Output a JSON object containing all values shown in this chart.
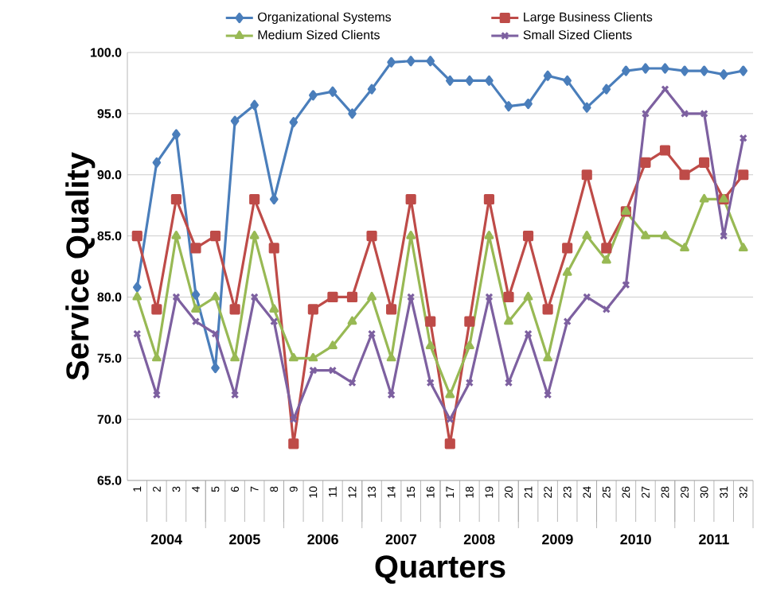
{
  "chart_data": {
    "type": "line",
    "xlabel": "Quarters",
    "ylabel": "Service Quality",
    "categories": [
      "1",
      "2",
      "3",
      "4",
      "5",
      "6",
      "7",
      "8",
      "9",
      "10",
      "11",
      "12",
      "13",
      "14",
      "15",
      "16",
      "17",
      "18",
      "19",
      "20",
      "21",
      "22",
      "23",
      "24",
      "25",
      "26",
      "27",
      "28",
      "29",
      "30",
      "31",
      "32"
    ],
    "series": [
      {
        "name": "Organizational Systems",
        "color": "#4a7ebb",
        "marker": "diamond",
        "values": [
          80.8,
          91,
          93.3,
          80.2,
          74.2,
          94.4,
          95.7,
          88,
          94.3,
          96.5,
          96.8,
          95,
          97,
          99.2,
          99.3,
          99.3,
          97.7,
          97.7,
          97.7,
          95.6,
          95.8,
          98.1,
          97.7,
          95.5,
          97,
          98.5,
          98.7,
          98.7,
          98.5,
          98.5,
          98.2,
          98.5
        ]
      },
      {
        "name": "Large Business Clients",
        "color": "#be4b48",
        "marker": "square",
        "values": [
          85,
          79,
          88,
          84,
          85,
          79,
          88,
          84,
          68,
          79,
          80,
          80,
          85,
          79,
          88,
          78,
          68,
          78,
          88,
          80,
          85,
          79,
          84,
          90,
          84,
          87,
          91,
          92,
          90,
          91,
          88,
          90
        ]
      },
      {
        "name": "Medium Sized Clients",
        "color": "#98b954",
        "marker": "triangle",
        "values": [
          80,
          75,
          85,
          79,
          80,
          75,
          85,
          79,
          75,
          75,
          76,
          78,
          80,
          75,
          85,
          76,
          72,
          76,
          85,
          78,
          80,
          75,
          82,
          85,
          83,
          87,
          85,
          85,
          84,
          88,
          88,
          84
        ]
      },
      {
        "name": "Small Sized Clients",
        "color": "#7d60a0",
        "marker": "cross",
        "values": [
          77,
          72,
          80,
          78,
          77,
          72,
          80,
          78,
          70,
          74,
          74,
          73,
          77,
          72,
          80,
          73,
          70,
          73,
          80,
          73,
          77,
          72,
          78,
          80,
          79,
          81,
          95,
          97,
          95,
          95,
          85,
          93
        ]
      }
    ],
    "annotations": [
      "2004",
      "2005",
      "2006",
      "2007",
      "2008",
      "2009",
      "2010",
      "2011"
    ],
    "ylim": [
      65,
      100
    ],
    "yticks": [
      {
        "value": 65,
        "label": "65.0"
      },
      {
        "value": 70,
        "label": "70.0"
      },
      {
        "value": 75,
        "label": "75.0"
      },
      {
        "value": 80,
        "label": "80.0"
      },
      {
        "value": 85,
        "label": "85.0"
      },
      {
        "value": 90,
        "label": "90.0"
      },
      {
        "value": 95,
        "label": "95.0"
      },
      {
        "value": 100,
        "label": "100.0"
      }
    ],
    "grid": "y",
    "legend": "top",
    "line_style": "solid"
  }
}
